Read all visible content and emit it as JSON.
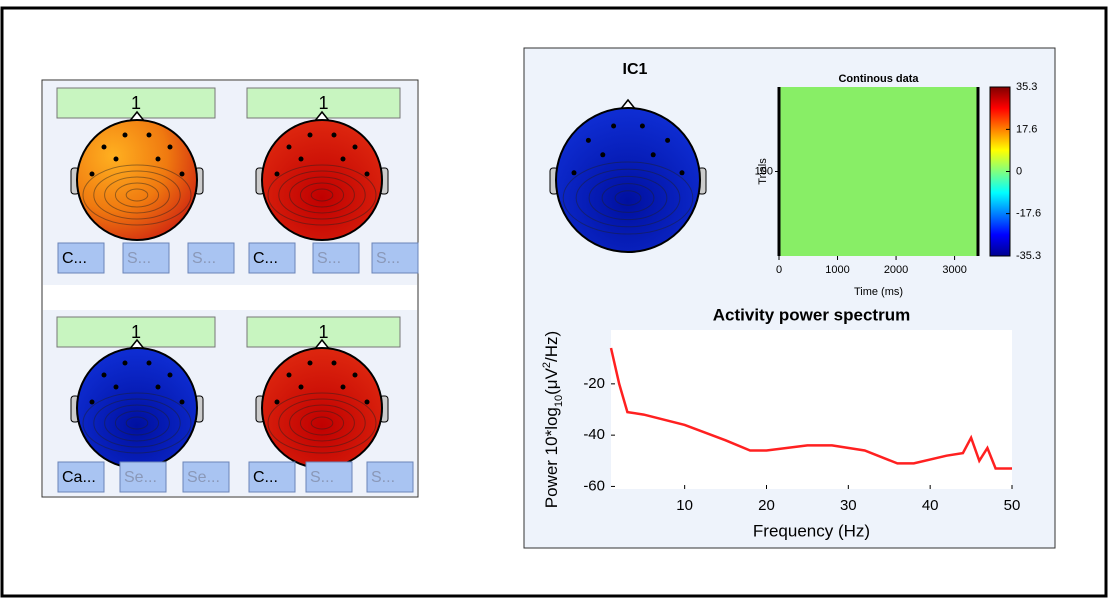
{
  "components": [
    {
      "label": "1",
      "color": "orange",
      "buttons": [
        "C...",
        "S...",
        "S..."
      ]
    },
    {
      "label": "1",
      "color": "red",
      "buttons": [
        "C...",
        "S...",
        "S..."
      ]
    },
    {
      "label": "1",
      "color": "blue",
      "buttons": [
        "Ca...",
        "Se...",
        "Se..."
      ]
    },
    {
      "label": "1",
      "color": "red",
      "buttons": [
        "C...",
        "S...",
        "S..."
      ]
    }
  ],
  "ic_panel": {
    "title": "IC1",
    "erp_image": {
      "title": "Continous data",
      "ylabel": "Trials",
      "xlabel": "Time (ms)",
      "xlim": [
        0,
        3400
      ],
      "xticks": [
        0,
        1000,
        2000,
        3000
      ],
      "ylim": [
        0,
        200
      ],
      "yticks": [
        100
      ],
      "colorbar_ticks": [
        35.3,
        17.6,
        0,
        -17.6,
        -35.3
      ]
    }
  },
  "chart_data": {
    "type": "line",
    "title": "Activity power spectrum",
    "xlabel": "Frequency (Hz)",
    "ylabel": [
      "Power 10*log",
      "10",
      "(μV",
      "2",
      "/Hz)"
    ],
    "x": [
      1,
      2,
      3,
      5,
      10,
      15,
      18,
      20,
      25,
      28,
      32,
      36,
      38,
      42,
      44,
      45,
      46,
      47,
      48,
      50
    ],
    "values": [
      -6,
      -20,
      -31,
      -32,
      -36,
      -42,
      -46,
      -46,
      -44,
      -44,
      -46,
      -51,
      -51,
      -48,
      -47,
      -41,
      -50,
      -45,
      -53,
      -53
    ],
    "color": "#ff2020",
    "xlim": [
      1,
      50
    ],
    "ylim": [
      -61,
      1
    ],
    "xticks": [
      10,
      20,
      30,
      40,
      50
    ],
    "yticks": [
      -20,
      -40,
      -60
    ]
  }
}
